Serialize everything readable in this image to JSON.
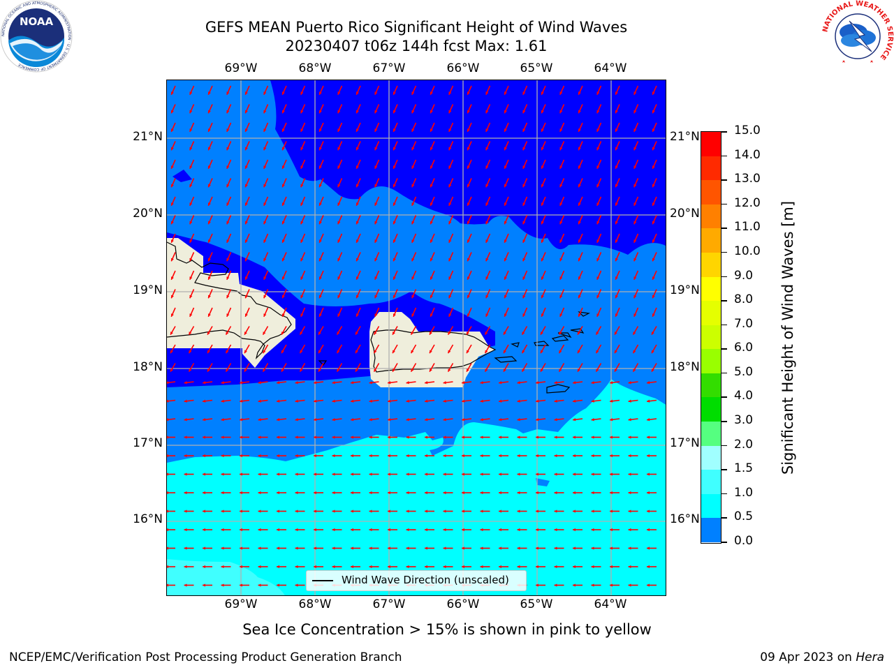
{
  "header": {
    "title_line1": "GEFS MEAN Puerto Rico Significant Height of Wind Waves",
    "title_line2": "20230407 t06z 144h fcst   Max: 1.61"
  },
  "logos": {
    "noaa_text": "NOAA",
    "noaa_ring_text": "NATIONAL OCEANIC AND ATMOSPHERIC ADMINISTRATION · U.S. DEPARTMENT OF COMMERCE",
    "nws_ring_text": "NATIONAL WEATHER SERVICE"
  },
  "map": {
    "lon_ticks": [
      "69°W",
      "68°W",
      "67°W",
      "66°W",
      "65°W",
      "64°W"
    ],
    "lat_ticks": [
      "21°N",
      "20°N",
      "19°N",
      "18°N",
      "17°N",
      "16°N"
    ],
    "legend_label": "Wind Wave Direction (unscaled)",
    "colors": {
      "band_0_05": "#0000ff",
      "band_05_10": "#0080ff",
      "band_10_15": "#00ffff",
      "band_15_20": "#40ffff",
      "land": "#efeedc",
      "arrow": "#ff0000",
      "grid": "#b0b0b0"
    }
  },
  "colorbar": {
    "label": "Significant Height of Wind Waves [m]",
    "ticks": [
      "15.0",
      "14.0",
      "13.0",
      "12.0",
      "11.0",
      "10.0",
      "9.0",
      "8.0",
      "7.0",
      "6.0",
      "5.0",
      "4.0",
      "3.0",
      "2.0",
      "1.5",
      "1.0",
      "0.5",
      "0.0"
    ],
    "colors": [
      "#ff0000",
      "#ff2a00",
      "#ff5500",
      "#ff8000",
      "#ffaa00",
      "#ffd500",
      "#ffff00",
      "#e5ff00",
      "#ccff00",
      "#99ff00",
      "#33dd00",
      "#00dd00",
      "#55ff80",
      "#a0ffff",
      "#40ffff",
      "#00ffff",
      "#0080ff",
      "#0000ff"
    ]
  },
  "bottom_note": "Sea Ice Concentration > 15% is shown in pink to yellow",
  "footer": {
    "left": "NCEP/EMC/Verification Post Processing Product Generation Branch",
    "right_date": "09 Apr 2023 on ",
    "right_machine": "Hera"
  }
}
